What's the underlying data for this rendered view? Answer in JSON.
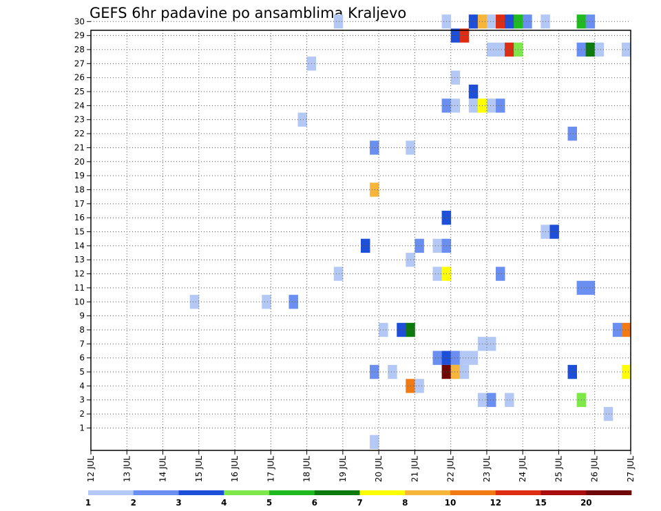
{
  "chart_data": {
    "type": "heatmap",
    "title": "GEFS 6hr padavine po ansamblima Kraljevo",
    "xlabel": "",
    "ylabel": "",
    "x_ticks": [
      "12 JUL",
      "13 JUL",
      "14 JUL",
      "15 JUL",
      "16 JUL",
      "17 JUL",
      "18 JUL",
      "19 JUL",
      "20 JUL",
      "21 JUL",
      "22 JUL",
      "23 JUL",
      "24 JUL",
      "25 JUL",
      "26 JUL",
      "27 JUL"
    ],
    "y_ticks": [
      "1",
      "2",
      "3",
      "4",
      "5",
      "6",
      "7",
      "8",
      "9",
      "10",
      "11",
      "12",
      "13",
      "14",
      "15",
      "16",
      "17",
      "18",
      "19",
      "20",
      "21",
      "22",
      "23",
      "24",
      "25",
      "26",
      "27",
      "28",
      "29",
      "30"
    ],
    "x_range_days": [
      12,
      27
    ],
    "time_step_hours": 6,
    "grid": true,
    "grid_style": "dotted",
    "legend": {
      "placement": "bottom",
      "levels": [
        "1",
        "2",
        "3",
        "4",
        "5",
        "6",
        "7",
        "8",
        "10",
        "12",
        "15",
        "20"
      ],
      "colors": [
        "#b4c8f5",
        "#6a8ff0",
        "#1d4fd9",
        "#7ee84a",
        "#1fba1f",
        "#0c7a0c",
        "#ffff00",
        "#f7b63a",
        "#f27a12",
        "#dd2d12",
        "#a80c0c",
        "#6e0606"
      ]
    },
    "series_note": "member = ensemble member (row), day = valid time in July days (6-hour steps), level = color class index (0 = lightest)",
    "cells": [
      {
        "member": 30,
        "day": 18.75,
        "level": 0
      },
      {
        "member": 30,
        "day": 21.75,
        "level": 0
      },
      {
        "member": 30,
        "day": 22.5,
        "level": 2
      },
      {
        "member": 30,
        "day": 22.75,
        "level": 7
      },
      {
        "member": 30,
        "day": 23.0,
        "level": 0
      },
      {
        "member": 30,
        "day": 23.25,
        "level": 9
      },
      {
        "member": 30,
        "day": 23.5,
        "level": 2
      },
      {
        "member": 30,
        "day": 23.75,
        "level": 4
      },
      {
        "member": 30,
        "day": 24.0,
        "level": 1
      },
      {
        "member": 30,
        "day": 24.5,
        "level": 0
      },
      {
        "member": 30,
        "day": 25.5,
        "level": 4
      },
      {
        "member": 30,
        "day": 25.75,
        "level": 1
      },
      {
        "member": 29,
        "day": 22.0,
        "level": 2
      },
      {
        "member": 29,
        "day": 22.25,
        "level": 9
      },
      {
        "member": 28,
        "day": 23.0,
        "level": 0
      },
      {
        "member": 28,
        "day": 23.25,
        "level": 0
      },
      {
        "member": 28,
        "day": 23.5,
        "level": 9
      },
      {
        "member": 28,
        "day": 23.75,
        "level": 3
      },
      {
        "member": 28,
        "day": 25.5,
        "level": 1
      },
      {
        "member": 28,
        "day": 25.75,
        "level": 5
      },
      {
        "member": 28,
        "day": 26.0,
        "level": 0
      },
      {
        "member": 28,
        "day": 26.75,
        "level": 0
      },
      {
        "member": 27,
        "day": 18.0,
        "level": 0
      },
      {
        "member": 26,
        "day": 22.0,
        "level": 0
      },
      {
        "member": 25,
        "day": 22.5,
        "level": 2
      },
      {
        "member": 24,
        "day": 21.75,
        "level": 1
      },
      {
        "member": 24,
        "day": 22.0,
        "level": 0
      },
      {
        "member": 24,
        "day": 22.5,
        "level": 0
      },
      {
        "member": 24,
        "day": 22.75,
        "level": 6
      },
      {
        "member": 24,
        "day": 23.0,
        "level": 0
      },
      {
        "member": 24,
        "day": 23.25,
        "level": 1
      },
      {
        "member": 23,
        "day": 17.75,
        "level": 0
      },
      {
        "member": 22,
        "day": 25.25,
        "level": 1
      },
      {
        "member": 21,
        "day": 19.75,
        "level": 1
      },
      {
        "member": 21,
        "day": 20.75,
        "level": 0
      },
      {
        "member": 18,
        "day": 19.75,
        "level": 7
      },
      {
        "member": 16,
        "day": 21.75,
        "level": 2
      },
      {
        "member": 15,
        "day": 24.5,
        "level": 0
      },
      {
        "member": 15,
        "day": 24.75,
        "level": 2
      },
      {
        "member": 14,
        "day": 19.5,
        "level": 2
      },
      {
        "member": 14,
        "day": 21.0,
        "level": 1
      },
      {
        "member": 14,
        "day": 21.5,
        "level": 0
      },
      {
        "member": 14,
        "day": 21.75,
        "level": 1
      },
      {
        "member": 13,
        "day": 20.75,
        "level": 0
      },
      {
        "member": 12,
        "day": 18.75,
        "level": 0
      },
      {
        "member": 12,
        "day": 21.5,
        "level": 0
      },
      {
        "member": 12,
        "day": 21.75,
        "level": 6
      },
      {
        "member": 12,
        "day": 23.25,
        "level": 1
      },
      {
        "member": 11,
        "day": 25.5,
        "level": 1
      },
      {
        "member": 11,
        "day": 25.75,
        "level": 1
      },
      {
        "member": 10,
        "day": 14.75,
        "level": 0
      },
      {
        "member": 10,
        "day": 16.75,
        "level": 0
      },
      {
        "member": 10,
        "day": 17.5,
        "level": 1
      },
      {
        "member": 8,
        "day": 20.0,
        "level": 0
      },
      {
        "member": 8,
        "day": 20.5,
        "level": 2
      },
      {
        "member": 8,
        "day": 20.75,
        "level": 5
      },
      {
        "member": 8,
        "day": 26.5,
        "level": 1
      },
      {
        "member": 8,
        "day": 26.75,
        "level": 8
      },
      {
        "member": 7,
        "day": 22.75,
        "level": 0
      },
      {
        "member": 7,
        "day": 23.0,
        "level": 0
      },
      {
        "member": 6,
        "day": 21.5,
        "level": 1
      },
      {
        "member": 6,
        "day": 21.75,
        "level": 2
      },
      {
        "member": 6,
        "day": 22.0,
        "level": 1
      },
      {
        "member": 6,
        "day": 22.25,
        "level": 0
      },
      {
        "member": 6,
        "day": 22.5,
        "level": 0
      },
      {
        "member": 5,
        "day": 19.75,
        "level": 1
      },
      {
        "member": 5,
        "day": 20.25,
        "level": 0
      },
      {
        "member": 5,
        "day": 21.75,
        "level": 11
      },
      {
        "member": 5,
        "day": 22.0,
        "level": 7
      },
      {
        "member": 5,
        "day": 22.25,
        "level": 0
      },
      {
        "member": 5,
        "day": 25.25,
        "level": 2
      },
      {
        "member": 5,
        "day": 26.75,
        "level": 6
      },
      {
        "member": 4,
        "day": 20.75,
        "level": 8
      },
      {
        "member": 4,
        "day": 21.0,
        "level": 0
      },
      {
        "member": 3,
        "day": 22.75,
        "level": 0
      },
      {
        "member": 3,
        "day": 23.0,
        "level": 1
      },
      {
        "member": 3,
        "day": 23.5,
        "level": 0
      },
      {
        "member": 3,
        "day": 25.5,
        "level": 3
      },
      {
        "member": 2,
        "day": 26.25,
        "level": 0
      },
      {
        "member": 0,
        "day": 19.75,
        "level": 0
      }
    ]
  }
}
